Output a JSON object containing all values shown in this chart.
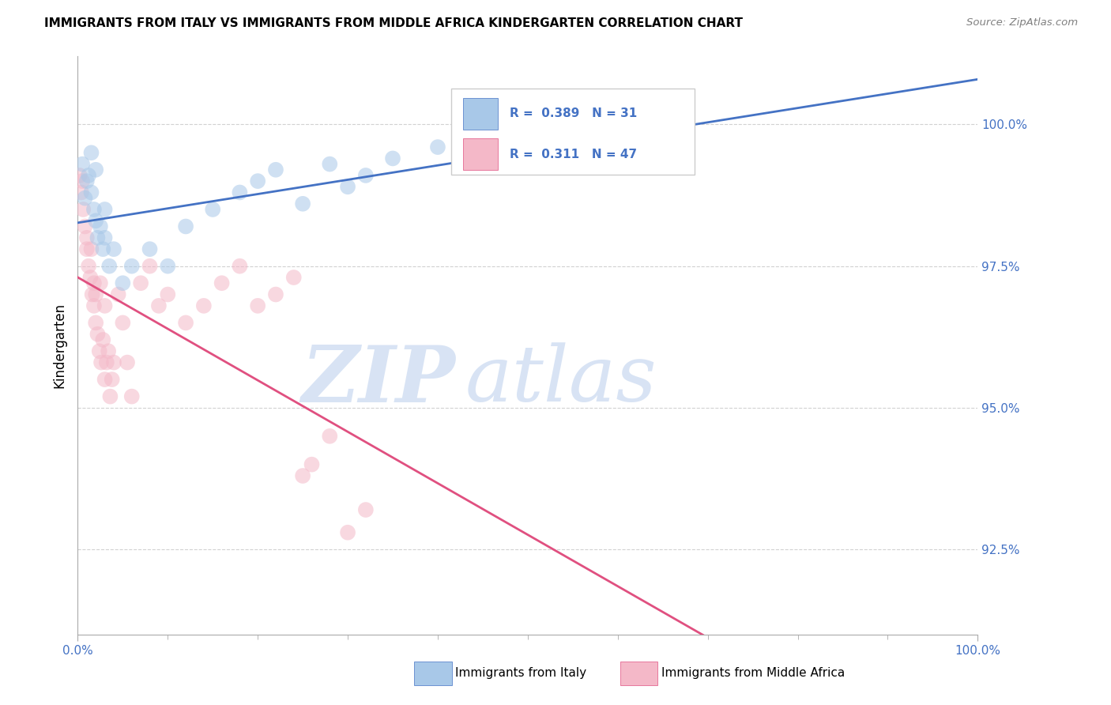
{
  "title": "IMMIGRANTS FROM ITALY VS IMMIGRANTS FROM MIDDLE AFRICA KINDERGARTEN CORRELATION CHART",
  "source": "Source: ZipAtlas.com",
  "ylabel": "Kindergarten",
  "xlim": [
    0,
    100
  ],
  "ylim": [
    91.0,
    101.2
  ],
  "yticks": [
    92.5,
    95.0,
    97.5,
    100.0
  ],
  "ytick_labels": [
    "92.5%",
    "95.0%",
    "97.5%",
    "100.0%"
  ],
  "xtick_labels": [
    "0.0%",
    "100.0%"
  ],
  "legend_r1": "R =  0.389",
  "legend_n1": "N = 31",
  "legend_r2": "R =  0.311",
  "legend_n2": "N = 47",
  "color_italy": "#a8c8e8",
  "color_middle_africa": "#f4b8c8",
  "color_italy_line": "#4472c4",
  "color_middle_africa_line": "#e05080",
  "watermark_zip": "ZIP",
  "watermark_atlas": "atlas",
  "watermark_color_zip": "#c8d8f0",
  "watermark_color_atlas": "#c8d8f0",
  "italy_x": [
    0.5,
    0.8,
    1.0,
    1.2,
    1.5,
    1.5,
    1.8,
    2.0,
    2.0,
    2.2,
    2.5,
    2.8,
    3.0,
    3.0,
    3.5,
    4.0,
    5.0,
    6.0,
    8.0,
    10.0,
    12.0,
    15.0,
    18.0,
    20.0,
    22.0,
    25.0,
    28.0,
    30.0,
    32.0,
    35.0,
    40.0
  ],
  "italy_y": [
    99.3,
    98.7,
    99.0,
    99.1,
    98.8,
    99.5,
    98.5,
    98.3,
    99.2,
    98.0,
    98.2,
    97.8,
    98.0,
    98.5,
    97.5,
    97.8,
    97.2,
    97.5,
    97.8,
    97.5,
    98.2,
    98.5,
    98.8,
    99.0,
    99.2,
    98.6,
    99.3,
    98.9,
    99.1,
    99.4,
    99.6
  ],
  "middle_africa_x": [
    0.2,
    0.4,
    0.5,
    0.6,
    0.8,
    1.0,
    1.0,
    1.2,
    1.4,
    1.5,
    1.6,
    1.8,
    1.8,
    2.0,
    2.0,
    2.2,
    2.4,
    2.5,
    2.6,
    2.8,
    3.0,
    3.0,
    3.2,
    3.4,
    3.6,
    3.8,
    4.0,
    4.5,
    5.0,
    5.5,
    6.0,
    7.0,
    8.0,
    9.0,
    10.0,
    12.0,
    14.0,
    16.0,
    18.0,
    20.0,
    22.0,
    24.0,
    25.0,
    26.0,
    28.0,
    30.0,
    32.0
  ],
  "middle_africa_y": [
    99.1,
    98.8,
    99.0,
    98.5,
    98.2,
    98.0,
    97.8,
    97.5,
    97.3,
    97.8,
    97.0,
    97.2,
    96.8,
    96.5,
    97.0,
    96.3,
    96.0,
    97.2,
    95.8,
    96.2,
    95.5,
    96.8,
    95.8,
    96.0,
    95.2,
    95.5,
    95.8,
    97.0,
    96.5,
    95.8,
    95.2,
    97.2,
    97.5,
    96.8,
    97.0,
    96.5,
    96.8,
    97.2,
    97.5,
    96.8,
    97.0,
    97.3,
    93.8,
    94.0,
    94.5,
    92.8,
    93.2
  ]
}
